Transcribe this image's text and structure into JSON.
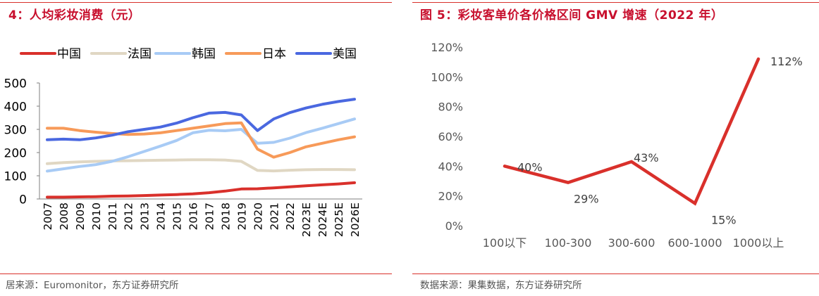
{
  "left": {
    "title": "4：人均彩妆消费（元）",
    "source": "居来源：Euromonitor，东方证券研究所",
    "colors": {
      "中国": "#d9302b",
      "法国": "#e0d7c3",
      "韩国": "#a8cbf5",
      "日本": "#f79a59",
      "美国": "#4a68e0"
    }
  },
  "right": {
    "title": "图 5：彩妆客单价各价格区间 GMV 增速（2022 年）",
    "source": "数据来源：果集数据，东方证券研究所",
    "color": "#d9302b"
  },
  "chart_data": [
    {
      "type": "line",
      "title": "4：人均彩妆消费（元）",
      "xlabel": "",
      "ylabel": "",
      "x": [
        "2007",
        "2008",
        "2009",
        "2010",
        "2011",
        "2012",
        "2013",
        "2014",
        "2015",
        "2016",
        "2017",
        "2018",
        "2019",
        "2020",
        "2021",
        "2022",
        "2023E",
        "2024E",
        "2025E",
        "2026E"
      ],
      "y_ticks": [
        "500",
        "400",
        "300",
        "200",
        "100",
        "0"
      ],
      "ylim": [
        0,
        500
      ],
      "legend_position": "top",
      "series": [
        {
          "name": "中国",
          "values": [
            8,
            8,
            9,
            10,
            12,
            13,
            15,
            17,
            19,
            22,
            27,
            34,
            43,
            44,
            48,
            52,
            57,
            61,
            65,
            70
          ]
        },
        {
          "name": "法国",
          "values": [
            152,
            157,
            160,
            162,
            164,
            165,
            166,
            167,
            168,
            169,
            169,
            168,
            162,
            123,
            121,
            124,
            126,
            127,
            127,
            126
          ]
        },
        {
          "name": "韩国",
          "values": [
            120,
            130,
            140,
            148,
            162,
            182,
            205,
            228,
            252,
            285,
            296,
            294,
            300,
            240,
            244,
            262,
            286,
            305,
            325,
            345
          ]
        },
        {
          "name": "日本",
          "values": [
            305,
            305,
            295,
            288,
            282,
            278,
            280,
            285,
            295,
            305,
            315,
            325,
            328,
            215,
            180,
            200,
            225,
            240,
            255,
            268
          ]
        },
        {
          "name": "美国",
          "values": [
            255,
            258,
            255,
            263,
            275,
            290,
            300,
            310,
            327,
            350,
            370,
            373,
            362,
            295,
            345,
            372,
            392,
            408,
            420,
            430
          ]
        }
      ]
    },
    {
      "type": "line",
      "title": "图 5：彩妆客单价各价格区间 GMV 增速（2022 年）",
      "xlabel": "",
      "ylabel": "",
      "categories": [
        "100以下",
        "100-300",
        "300-600",
        "600-1000",
        "1000以上"
      ],
      "values": [
        40,
        29,
        43,
        15,
        112
      ],
      "data_labels": [
        "40%",
        "29%",
        "43%",
        "15%",
        "112%"
      ],
      "y_ticks": [
        "120%",
        "100%",
        "80%",
        "60%",
        "40%",
        "20%",
        "0%"
      ],
      "ylim": [
        0,
        120
      ]
    }
  ]
}
